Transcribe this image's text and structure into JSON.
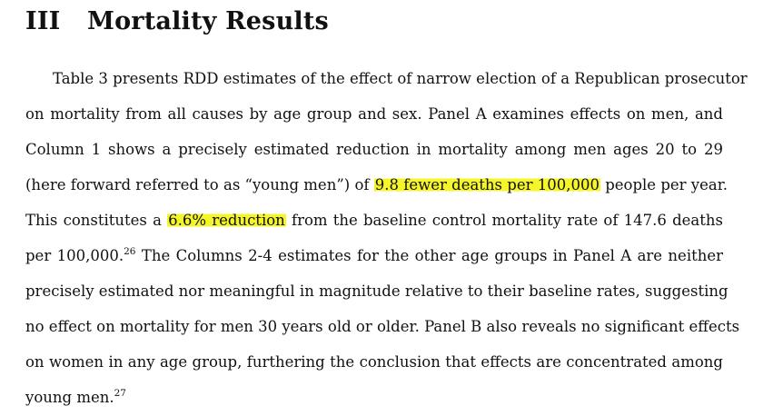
{
  "section": {
    "number": "III",
    "title": "Mortality Results"
  },
  "paragraph": {
    "line1": "Table 3 presents RDD estimates of the effect of narrow election of a Republican prosecutor",
    "line2": "on mortality from all causes by age group and sex. Panel A examines effects on men, and",
    "line3": "Column 1 shows a precisely estimated reduction in mortality among men ages 20 to 29",
    "line4_before": "(here forward referred to as “young men”) of",
    "line4_highlight": "9.8 fewer deaths per 100,000",
    "line4_after": "people per year.",
    "line5_before": "This constitutes a",
    "line5_highlight": "6.6% reduction",
    "line5_after": "from the baseline control mortality rate of 147.6 deaths",
    "line6_text": "per 100,000.",
    "line6_footnote": "26",
    "line6_after": "The Columns 2-4 estimates for the other age groups in Panel A are neither",
    "line7": "precisely estimated nor meaningful in magnitude relative to their baseline rates, suggesting",
    "line8": "no effect on mortality for men 30 years old or older. Panel B also reveals no significant effects",
    "line9": "on women in any age group, furthering the conclusion that effects are concentrated among",
    "line10_text": "young men.",
    "line10_footnote": "27"
  },
  "highlight_color": "#f5f52c"
}
